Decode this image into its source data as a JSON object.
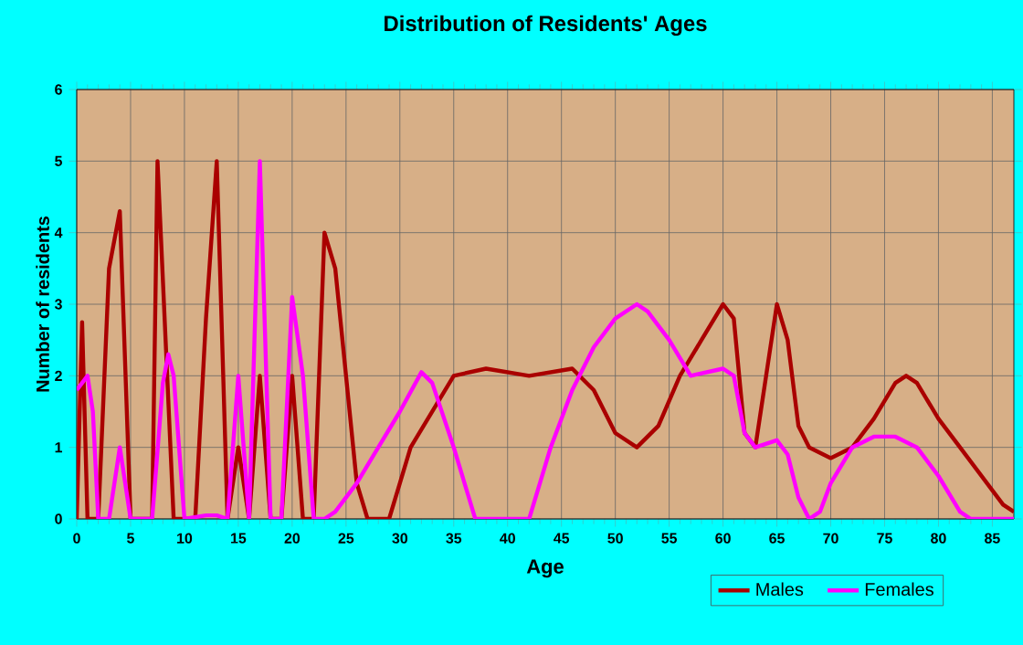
{
  "chart_data": {
    "type": "line",
    "title": "Distribution of Residents' Ages",
    "xlabel": "Age",
    "ylabel": "Number of residents",
    "xlim": [
      0,
      87
    ],
    "ylim": [
      0,
      6
    ],
    "xticks": [
      0,
      5,
      10,
      15,
      20,
      25,
      30,
      35,
      40,
      45,
      50,
      55,
      60,
      65,
      70,
      75,
      80,
      85
    ],
    "yticks": [
      0,
      1,
      2,
      3,
      4,
      5,
      6
    ],
    "grid": true,
    "legend": "bottom right",
    "marker": "none",
    "line_style": "solid",
    "series": [
      {
        "name": "Males",
        "color": "#aa0000",
        "x": [
          0,
          0.5,
          1,
          2,
          3,
          4,
          5,
          6,
          7,
          7.5,
          9,
          10,
          11,
          12,
          13,
          14,
          15,
          16,
          17,
          18,
          19,
          20,
          21,
          22,
          23,
          24,
          25,
          26,
          27,
          28,
          29,
          30,
          31,
          33,
          35,
          38,
          42,
          46,
          48,
          50,
          52,
          54,
          56,
          58,
          60,
          61,
          62,
          63,
          64,
          65,
          66,
          67,
          68,
          70,
          72,
          74,
          76,
          77,
          78,
          80,
          82,
          84,
          86,
          87
        ],
        "values": [
          0,
          2.75,
          0,
          0,
          3.5,
          4.3,
          0,
          0,
          0,
          5,
          0,
          0,
          0,
          2.8,
          5,
          0,
          1,
          0,
          2,
          0,
          0,
          2,
          0,
          0,
          4,
          3.5,
          2,
          0.5,
          0,
          0,
          0,
          0.5,
          1,
          1.5,
          2,
          2.1,
          2,
          2.1,
          1.8,
          1.2,
          1,
          1.3,
          2,
          2.5,
          3,
          2.8,
          1.2,
          1,
          2,
          3,
          2.5,
          1.3,
          1,
          0.85,
          1,
          1.4,
          1.9,
          2,
          1.9,
          1.4,
          1,
          0.6,
          0.2,
          0.1
        ]
      },
      {
        "name": "Females",
        "color": "#ff00ff",
        "x": [
          0,
          1,
          1.5,
          2,
          3,
          4,
          5,
          6,
          7,
          8,
          8.5,
          9,
          10,
          12,
          13,
          14,
          15,
          16,
          17,
          18,
          19,
          20,
          21,
          22,
          23,
          24,
          26,
          28,
          30,
          32,
          33,
          35,
          37,
          40,
          42,
          44,
          46,
          48,
          50,
          52,
          53,
          55,
          57,
          60,
          61,
          62,
          63,
          65,
          66,
          67,
          68,
          69,
          70,
          72,
          74,
          76,
          78,
          80,
          82,
          83,
          87
        ],
        "values": [
          1.8,
          2,
          1.5,
          0,
          0,
          1,
          0,
          0,
          0,
          1.9,
          2.3,
          2,
          0,
          0.05,
          0.05,
          0,
          2,
          0,
          5,
          0,
          0,
          3.1,
          2,
          0,
          0,
          0.1,
          0.5,
          1,
          1.5,
          2.05,
          1.9,
          1,
          0,
          0,
          0,
          1,
          1.8,
          2.4,
          2.8,
          3,
          2.9,
          2.5,
          2,
          2.1,
          2,
          1.2,
          1,
          1.1,
          0.9,
          0.3,
          0,
          0.1,
          0.5,
          1,
          1.15,
          1.15,
          1,
          0.6,
          0.1,
          0,
          0
        ]
      }
    ]
  }
}
